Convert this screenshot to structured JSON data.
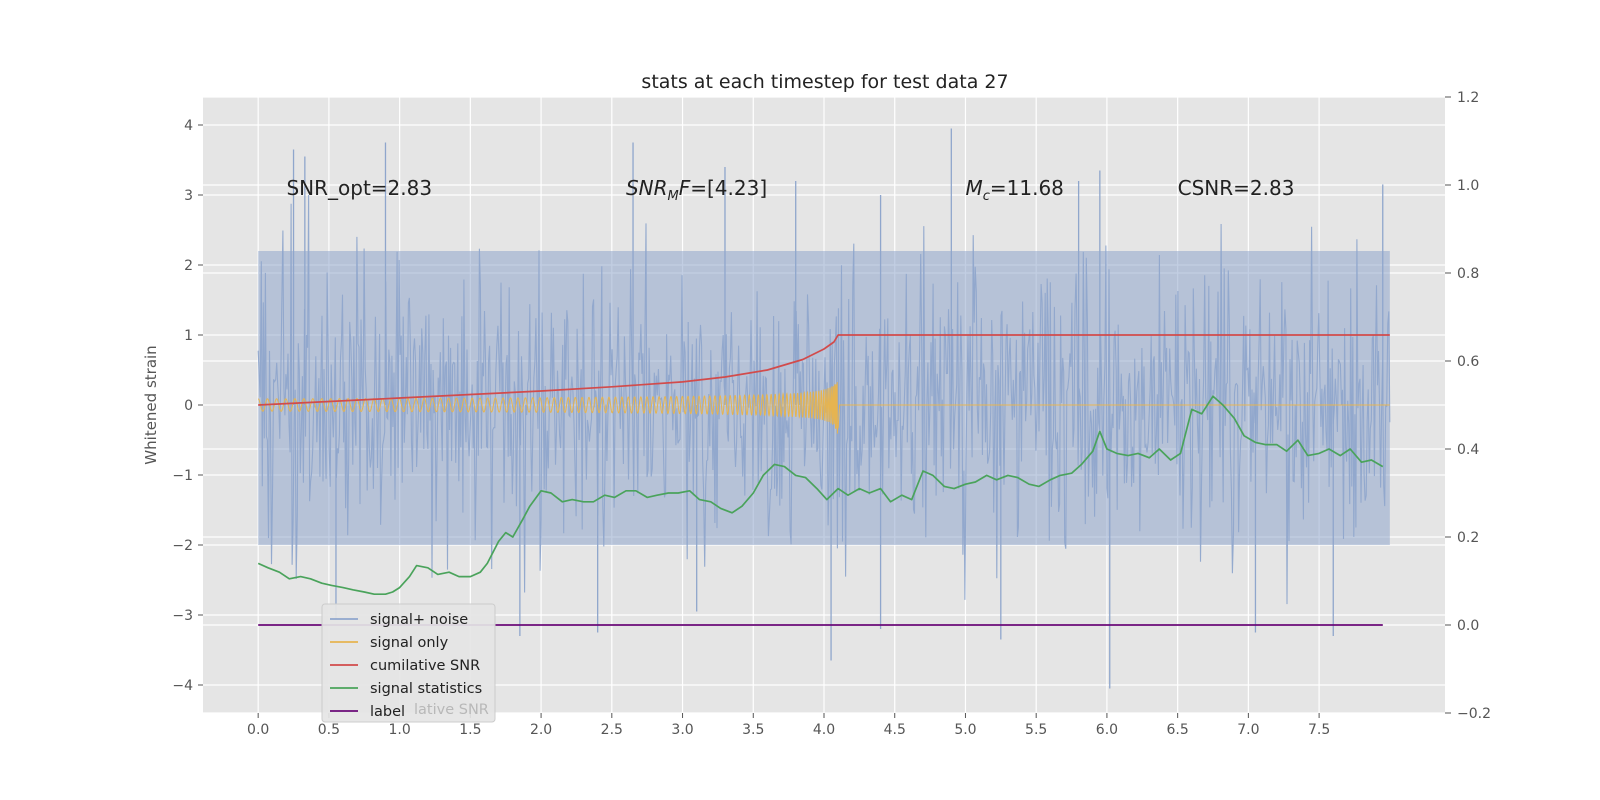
{
  "chart_data": {
    "type": "line",
    "title": "stats at each timestep for test data 27",
    "ylabel": "Whitened strain",
    "ylabel_right": "",
    "xlim": [
      -0.39,
      8.39
    ],
    "ylim": [
      -4.4,
      4.4
    ],
    "ylim_right": [
      -0.2,
      1.2
    ],
    "grid": true,
    "legend_position": "lower-left",
    "x_ticks": [
      0.0,
      0.5,
      1.0,
      1.5,
      2.0,
      2.5,
      3.0,
      3.5,
      4.0,
      4.5,
      5.0,
      5.5,
      6.0,
      6.5,
      7.0,
      7.5
    ],
    "x_tick_labels": [
      "0.0",
      "0.5",
      "1.0",
      "1.5",
      "2.0",
      "2.5",
      "3.0",
      "3.5",
      "4.0",
      "4.5",
      "5.0",
      "5.5",
      "6.0",
      "6.5",
      "7.0",
      "7.5"
    ],
    "y_ticks": [
      4,
      3,
      2,
      1,
      0,
      -1,
      -2,
      -3,
      -4
    ],
    "y_tick_labels": [
      "4",
      "3",
      "2",
      "1",
      "0",
      "−1",
      "−2",
      "−3",
      "−4"
    ],
    "y_right_ticks": [
      1.2,
      1.0,
      0.8,
      0.6,
      0.4,
      0.2,
      0.0,
      -0.2
    ],
    "y_right_tick_labels": [
      "1.2",
      "1.0",
      "0.8",
      "0.6",
      "0.4",
      "0.2",
      "0.0",
      "−0.2"
    ],
    "annotations": [
      {
        "id": "snr-opt",
        "text": "SNR_opt=2.83",
        "x": 0.2,
        "y": 3.1,
        "math": false
      },
      {
        "id": "snr-mf",
        "main": "SNR",
        "sub": "M",
        "rest": "F=[4.23]",
        "x": 2.6,
        "y": 3.1,
        "math": true
      },
      {
        "id": "chirp-mass",
        "main": "M",
        "sub": "c",
        "rest": "=11.68",
        "x": 5.0,
        "y": 3.1,
        "math": true
      },
      {
        "id": "csnr",
        "text": "CSNR=2.83",
        "x": 6.5,
        "y": 3.1,
        "math": false
      }
    ],
    "series": [
      {
        "name": "signal+ noise",
        "color": "#8fa6cc",
        "axis": "left",
        "style": "noise",
        "x_range": [
          0.0,
          8.0
        ],
        "band": [
          -2.0,
          2.2
        ],
        "extremes": [
          [
            0.25,
            3.65
          ],
          [
            0.33,
            3.55
          ],
          [
            0.9,
            3.75
          ],
          [
            2.65,
            3.75
          ],
          [
            3.3,
            3.4
          ],
          [
            3.8,
            3.2
          ],
          [
            4.4,
            3.0
          ],
          [
            4.9,
            3.95
          ],
          [
            5.8,
            3.2
          ],
          [
            5.95,
            3.35
          ],
          [
            7.95,
            3.15
          ],
          [
            4.05,
            -3.65
          ],
          [
            6.02,
            -4.05
          ],
          [
            5.25,
            -3.35
          ],
          [
            1.85,
            -3.3
          ],
          [
            2.4,
            -3.25
          ],
          [
            7.05,
            -3.25
          ],
          [
            7.6,
            -3.3
          ],
          [
            0.55,
            -3.05
          ],
          [
            3.1,
            -2.95
          ],
          [
            4.4,
            -3.2
          ]
        ]
      },
      {
        "name": "signal only",
        "color": "#e6b450",
        "axis": "left",
        "style": "chirp",
        "merger_time": 4.1,
        "peak_amplitude": 0.5
      },
      {
        "name": "cumilative SNR",
        "color": "#d24b4b",
        "axis": "left",
        "x": [
          0.0,
          0.5,
          1.0,
          1.5,
          2.0,
          2.5,
          3.0,
          3.3,
          3.6,
          3.85,
          4.0,
          4.07,
          4.1,
          4.5,
          5.0,
          6.0,
          7.0,
          8.0
        ],
        "y": [
          0.0,
          0.05,
          0.1,
          0.15,
          0.2,
          0.26,
          0.33,
          0.4,
          0.5,
          0.65,
          0.8,
          0.9,
          1.0,
          1.0,
          1.0,
          1.0,
          1.0,
          1.0
        ]
      },
      {
        "name": "signal statistics",
        "color": "#4aa35b",
        "axis": "right",
        "x": [
          0.0,
          0.07,
          0.15,
          0.22,
          0.3,
          0.37,
          0.45,
          0.52,
          0.6,
          0.67,
          0.75,
          0.82,
          0.9,
          0.95,
          1.0,
          1.07,
          1.12,
          1.2,
          1.27,
          1.35,
          1.42,
          1.5,
          1.57,
          1.62,
          1.7,
          1.75,
          1.8,
          1.87,
          1.92,
          2.0,
          2.07,
          2.15,
          2.22,
          2.3,
          2.37,
          2.45,
          2.52,
          2.6,
          2.67,
          2.75,
          2.82,
          2.9,
          2.97,
          3.05,
          3.12,
          3.2,
          3.27,
          3.35,
          3.42,
          3.5,
          3.57,
          3.65,
          3.72,
          3.8,
          3.87,
          3.95,
          4.02,
          4.1,
          4.17,
          4.25,
          4.32,
          4.4,
          4.47,
          4.55,
          4.62,
          4.7,
          4.77,
          4.85,
          4.92,
          5.0,
          5.07,
          5.15,
          5.22,
          5.3,
          5.37,
          5.45,
          5.52,
          5.6,
          5.67,
          5.75,
          5.82,
          5.9,
          5.95,
          6.0,
          6.07,
          6.15,
          6.22,
          6.3,
          6.37,
          6.45,
          6.52,
          6.6,
          6.67,
          6.75,
          6.82,
          6.9,
          6.97,
          7.05,
          7.12,
          7.2,
          7.27,
          7.35,
          7.42,
          7.5,
          7.57,
          7.65,
          7.72,
          7.8,
          7.87,
          7.95
        ],
        "y": [
          0.14,
          0.13,
          0.12,
          0.105,
          0.11,
          0.105,
          0.095,
          0.09,
          0.085,
          0.08,
          0.075,
          0.07,
          0.07,
          0.075,
          0.085,
          0.11,
          0.135,
          0.13,
          0.115,
          0.12,
          0.11,
          0.11,
          0.12,
          0.14,
          0.19,
          0.21,
          0.2,
          0.24,
          0.27,
          0.305,
          0.3,
          0.28,
          0.285,
          0.28,
          0.28,
          0.295,
          0.29,
          0.305,
          0.305,
          0.29,
          0.295,
          0.3,
          0.3,
          0.305,
          0.285,
          0.28,
          0.265,
          0.255,
          0.27,
          0.3,
          0.34,
          0.365,
          0.36,
          0.34,
          0.335,
          0.31,
          0.285,
          0.31,
          0.295,
          0.31,
          0.3,
          0.31,
          0.28,
          0.295,
          0.285,
          0.35,
          0.34,
          0.315,
          0.31,
          0.32,
          0.325,
          0.34,
          0.33,
          0.34,
          0.335,
          0.32,
          0.315,
          0.33,
          0.34,
          0.345,
          0.365,
          0.395,
          0.44,
          0.4,
          0.39,
          0.385,
          0.39,
          0.38,
          0.4,
          0.375,
          0.39,
          0.49,
          0.48,
          0.52,
          0.5,
          0.47,
          0.43,
          0.415,
          0.41,
          0.41,
          0.395,
          0.42,
          0.385,
          0.39,
          0.4,
          0.385,
          0.4,
          0.37,
          0.375,
          0.36
        ]
      },
      {
        "name": "label",
        "color": "#6a0a78",
        "axis": "right",
        "x": [
          0.0,
          7.95
        ],
        "y": [
          0.0,
          0.0
        ]
      }
    ],
    "legend_bleed_text": "lative SNR"
  }
}
